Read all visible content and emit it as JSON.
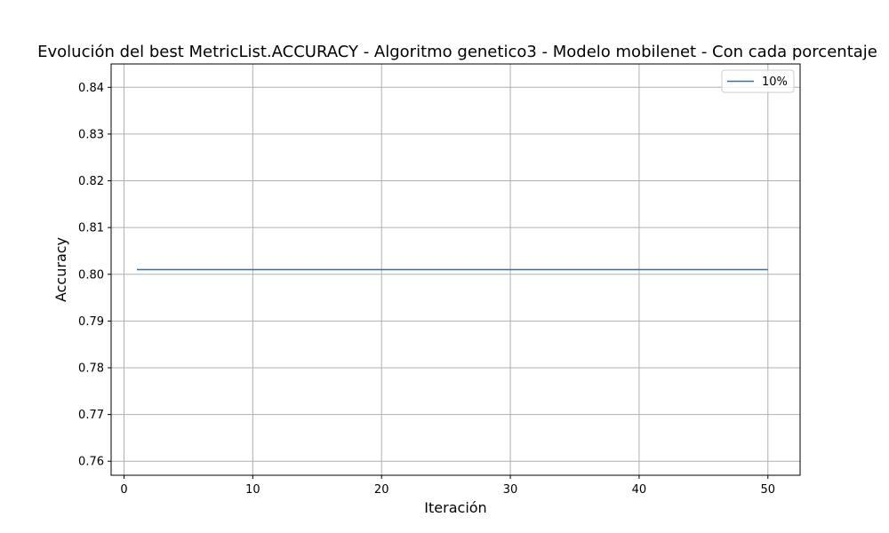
{
  "chart_data": {
    "type": "line",
    "title": "Evolución del best MetricList.ACCURACY - Algoritmo genetico3 - Modelo mobilenet - Con cada porcentaje",
    "xlabel": "Iteración",
    "ylabel": "Accuracy",
    "xlim": [
      -1,
      52.5
    ],
    "ylim": [
      0.757,
      0.845
    ],
    "xticks": [
      0,
      10,
      20,
      30,
      40,
      50
    ],
    "xtick_labels": [
      "0",
      "10",
      "20",
      "30",
      "40",
      "50"
    ],
    "yticks": [
      0.76,
      0.77,
      0.78,
      0.79,
      0.8,
      0.81,
      0.82,
      0.83,
      0.84
    ],
    "ytick_labels": [
      "0.76",
      "0.77",
      "0.78",
      "0.79",
      "0.80",
      "0.81",
      "0.82",
      "0.83",
      "0.84"
    ],
    "grid": true,
    "legend_position": "top-right",
    "series": [
      {
        "name": "10%",
        "color": "#1f77b4",
        "x": [
          1,
          50
        ],
        "y": [
          0.801,
          0.801
        ]
      }
    ]
  }
}
